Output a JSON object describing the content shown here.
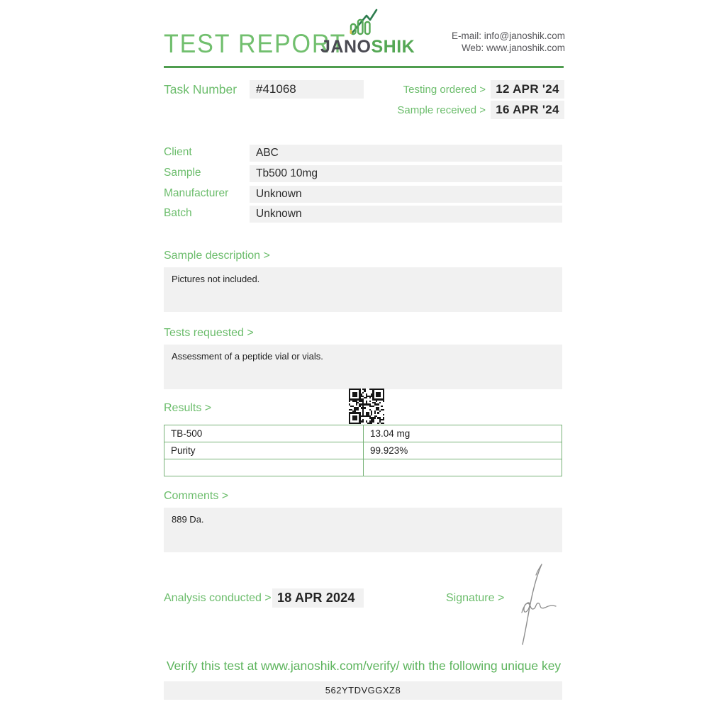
{
  "header": {
    "title": "TEST REPORT",
    "brand_left": "JANO",
    "brand_right": "SHIK",
    "email_line": "E-mail: info@janoshik.com",
    "web_line": "Web: www.janoshik.com"
  },
  "task": {
    "label": "Task Number",
    "value": "#41068",
    "testing_ordered_label": "Testing ordered  >",
    "testing_ordered_value": "12 APR '24",
    "sample_received_label": "Sample received >",
    "sample_received_value": "16 APR '24"
  },
  "info_rows": [
    {
      "label": "Client",
      "value": "ABC"
    },
    {
      "label": "Sample",
      "value": "Tb500 10mg"
    },
    {
      "label": "Manufacturer",
      "value": "Unknown"
    },
    {
      "label": "Batch",
      "value": "Unknown"
    }
  ],
  "sections": {
    "sample_description_label": "Sample description >",
    "sample_description_text": "Pictures not included.",
    "tests_requested_label": "Tests requested >",
    "tests_requested_text": "Assessment of a peptide vial or vials.",
    "results_label": "Results >",
    "comments_label": "Comments >",
    "comments_text": "889 Da."
  },
  "results_table": {
    "rows": [
      {
        "name": "TB-500",
        "value": "13.04 mg"
      },
      {
        "name": "Purity",
        "value": "99.923%"
      },
      {
        "name": "",
        "value": ""
      }
    ]
  },
  "footer": {
    "analysis_label": "Analysis conducted >",
    "analysis_value": "18 APR 2024",
    "signature_label": "Signature >",
    "verify_text": "Verify this test at www.janoshik.com/verify/ with the following unique key",
    "verify_key": "562YTDVGGXZ8"
  },
  "colors": {
    "accent_green_light": "#6cbd6c",
    "accent_green_dark": "#4f9d4f",
    "table_border_green": "#76b276",
    "field_background": "#f1f1f1",
    "text_dark": "#2a2a2a"
  }
}
